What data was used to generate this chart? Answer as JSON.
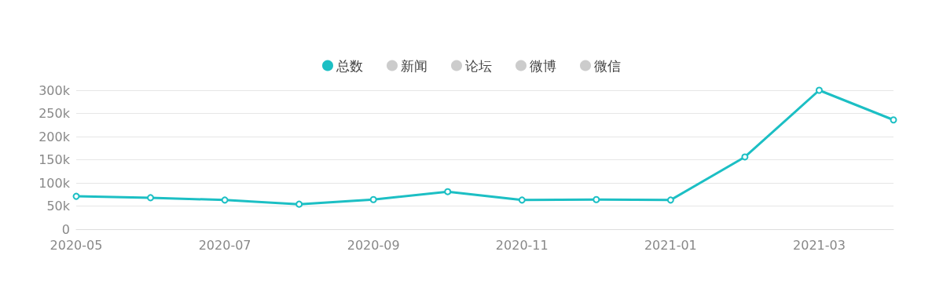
{
  "chart_data": {
    "type": "line",
    "categories": [
      "2020-05",
      null,
      "2020-07",
      null,
      "2020-09",
      null,
      "2020-11",
      null,
      "2021-01",
      null,
      "2021-03",
      null
    ],
    "series": [
      {
        "name": "总数",
        "color": "#1cbfc4",
        "values": [
          71000,
          68000,
          63000,
          54000,
          64000,
          81000,
          63000,
          64000,
          63000,
          156000,
          300000,
          236000
        ]
      },
      {
        "name": "新闻",
        "color": "#cccccc",
        "values": [
          null,
          null,
          null,
          null,
          null,
          null,
          null,
          null,
          null,
          null,
          null,
          null
        ]
      },
      {
        "name": "论坛",
        "color": "#cccccc",
        "values": [
          null,
          null,
          null,
          null,
          null,
          null,
          null,
          null,
          null,
          null,
          null,
          null
        ]
      },
      {
        "name": "微博",
        "color": "#cccccc",
        "values": [
          null,
          null,
          null,
          null,
          null,
          null,
          null,
          null,
          null,
          null,
          null,
          null
        ]
      },
      {
        "name": "微信",
        "color": "#cccccc",
        "values": [
          null,
          null,
          null,
          null,
          null,
          null,
          null,
          null,
          null,
          null,
          null,
          null
        ]
      }
    ],
    "ylim": [
      0,
      300000
    ],
    "yticks": [
      0,
      {
        "value": 50000,
        "label": "50k"
      },
      {
        "value": 100000,
        "label": "100k"
      },
      {
        "value": 150000,
        "label": "150k"
      },
      {
        "value": 200000,
        "label": "200k"
      },
      {
        "value": 250000,
        "label": "250k"
      },
      {
        "value": 300000,
        "label": "300k"
      }
    ],
    "grid": "y",
    "legend": "top",
    "marker": "circle",
    "line_style": "solid"
  }
}
